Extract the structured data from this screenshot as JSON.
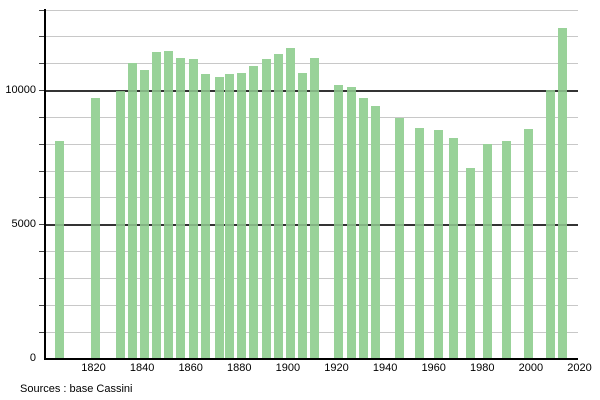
{
  "source_caption": "Sources : base Cassini",
  "chart_data": {
    "type": "bar",
    "title": "",
    "xlabel": "",
    "ylabel": "",
    "categories": [
      1806,
      1821,
      1831,
      1836,
      1841,
      1846,
      1851,
      1856,
      1861,
      1866,
      1872,
      1876,
      1881,
      1886,
      1891,
      1896,
      1901,
      1906,
      1911,
      1921,
      1926,
      1931,
      1936,
      1946,
      1954,
      1962,
      1968,
      1975,
      1982,
      1990,
      1999,
      2008,
      2013
    ],
    "values": [
      8100,
      9700,
      9950,
      11000,
      10750,
      11400,
      11450,
      11200,
      11150,
      10600,
      10500,
      10600,
      10650,
      10900,
      11150,
      11350,
      11550,
      10650,
      11200,
      10200,
      10100,
      9700,
      9400,
      8950,
      8600,
      8500,
      8200,
      7100,
      8000,
      8100,
      8550,
      10000,
      12300
    ],
    "ylim": [
      0,
      13000
    ],
    "xlim": [
      1800,
      2020
    ],
    "y_labeled_ticks": [
      0,
      5000,
      10000
    ],
    "y_major_grid_ticks": [
      5000,
      10000
    ],
    "y_minor_grid_step": 1000,
    "x_tick_labels": [
      1820,
      1840,
      1860,
      1880,
      1900,
      1920,
      1940,
      1960,
      1980,
      2000,
      2020
    ],
    "grid": "horizontal",
    "legend": "none",
    "colors": {
      "bar": "#99d299",
      "minor_grid": "#c8c8c8",
      "major_grid": "#3d3d3d",
      "tick": "#444444",
      "axis": "#000000",
      "text": "#000000",
      "background": "#ffffff"
    }
  }
}
